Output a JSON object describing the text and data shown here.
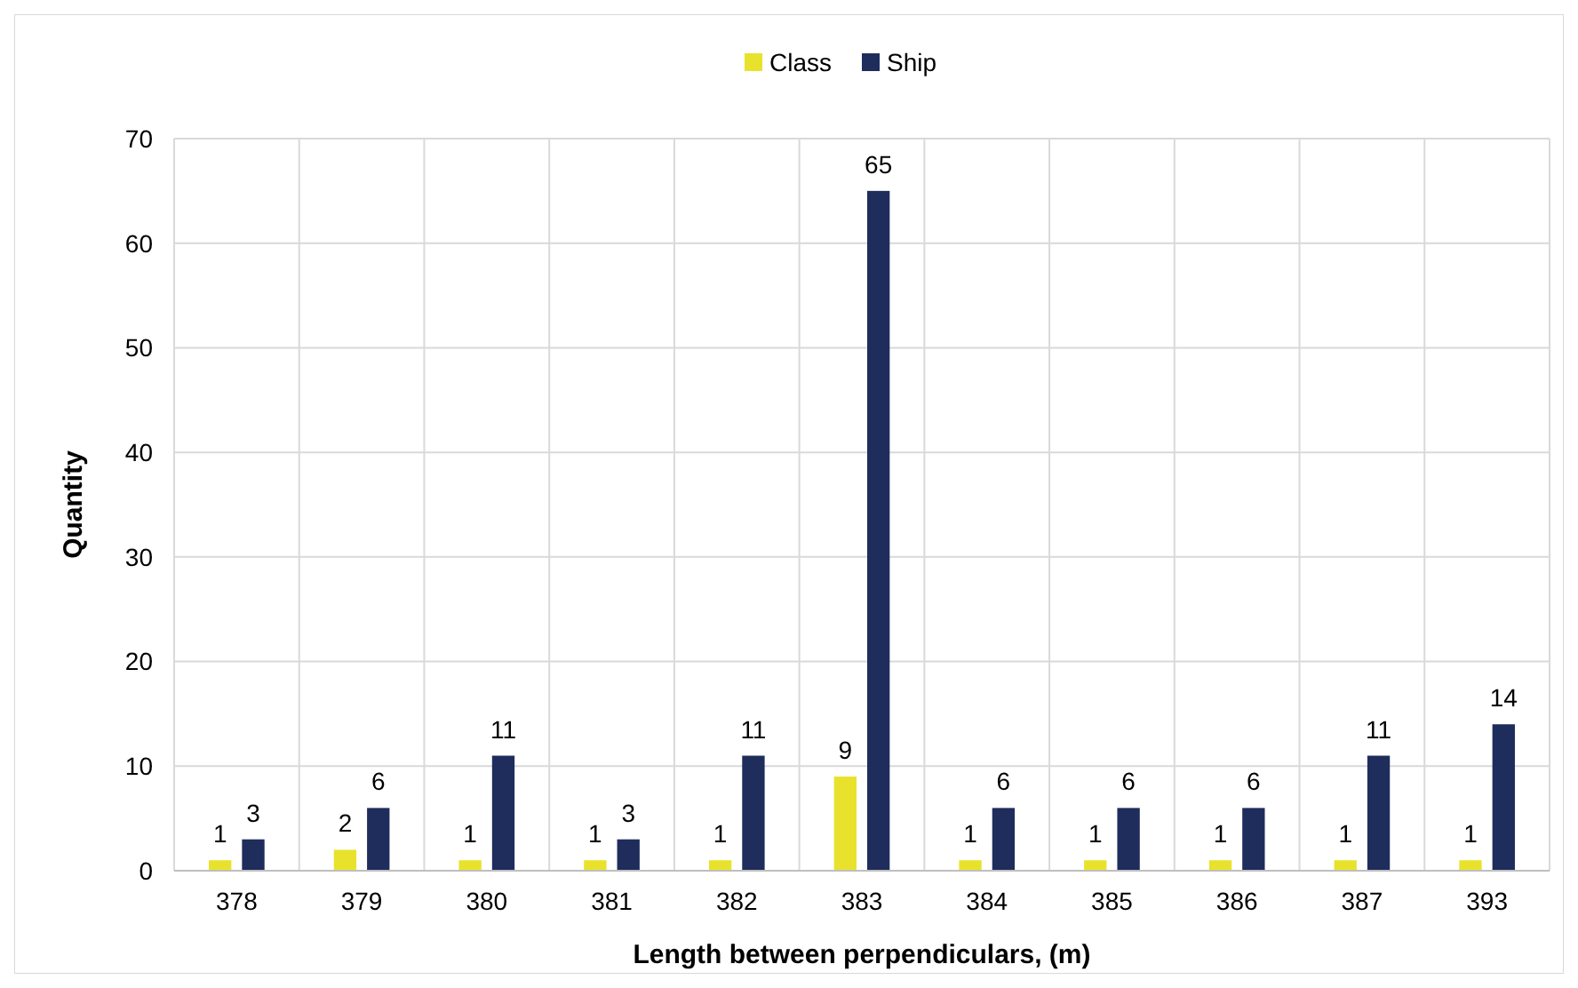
{
  "chart_data": {
    "type": "bar",
    "xlabel": "Length between perpendiculars, (m)",
    "ylabel": "Quantity",
    "categories": [
      "378",
      "379",
      "380",
      "381",
      "382",
      "383",
      "384",
      "385",
      "386",
      "387",
      "393"
    ],
    "series": [
      {
        "name": "Class",
        "color": "#e8e22c",
        "values": [
          1,
          2,
          1,
          1,
          1,
          9,
          1,
          1,
          1,
          1,
          1
        ]
      },
      {
        "name": "Ship",
        "color": "#1f2d5c",
        "values": [
          3,
          6,
          11,
          3,
          11,
          65,
          6,
          6,
          6,
          11,
          14
        ]
      }
    ],
    "ylim": [
      0,
      70
    ],
    "yticks": [
      0,
      10,
      20,
      30,
      40,
      50,
      60,
      70
    ],
    "grid": true,
    "legend": "top",
    "data_labels": true
  }
}
